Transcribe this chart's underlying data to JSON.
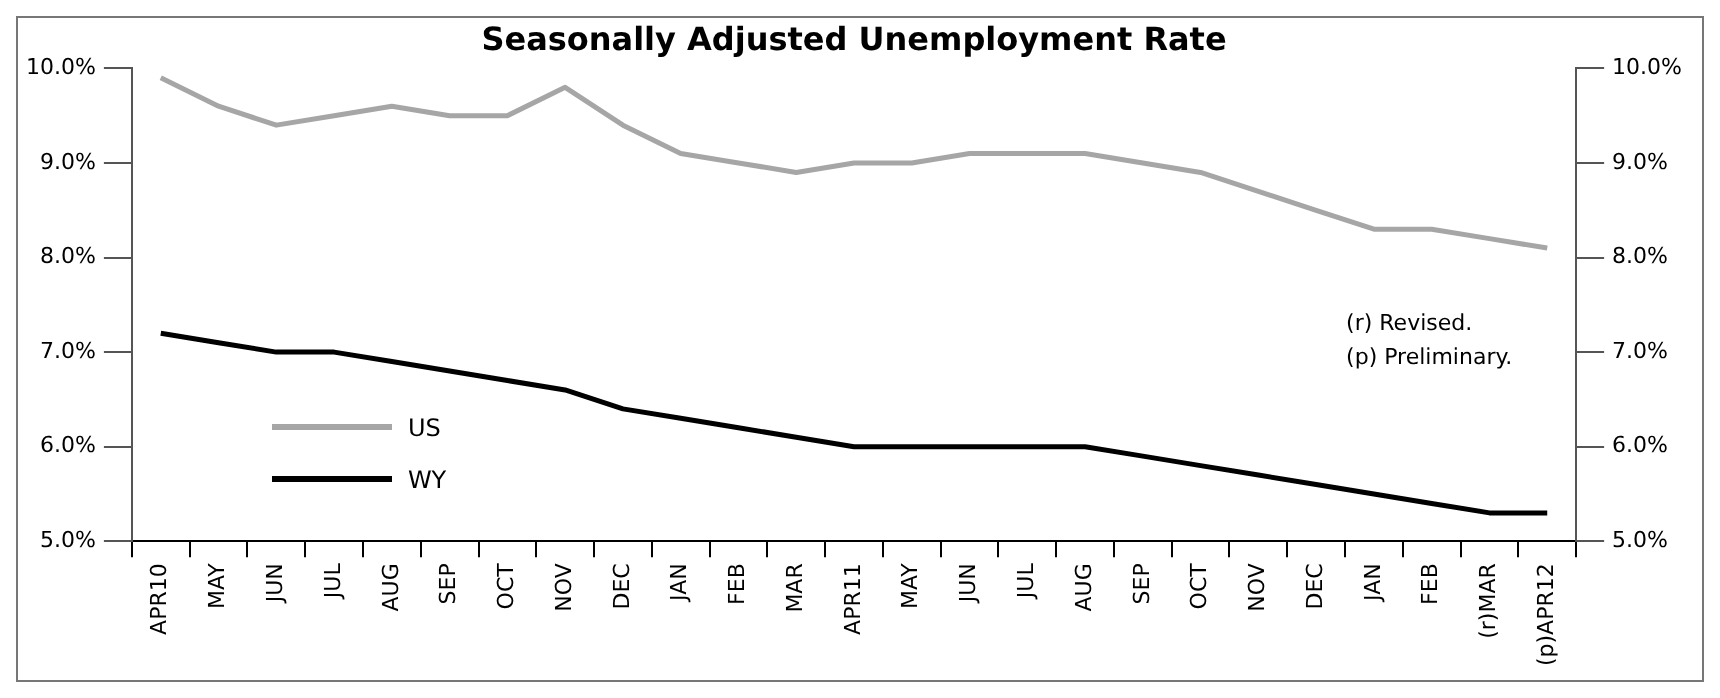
{
  "chart_data": {
    "type": "line",
    "title": "Seasonally Adjusted Unemployment Rate",
    "categories": [
      "APR10",
      "MAY",
      "JUN",
      "JUL",
      "AUG",
      "SEP",
      "OCT",
      "NOV",
      "DEC",
      "JAN",
      "FEB",
      "MAR",
      "APR11",
      "MAY",
      "JUN",
      "JUL",
      "AUG",
      "SEP",
      "OCT",
      "NOV",
      "DEC",
      "JAN",
      "FEB",
      "(r)MAR",
      "(p)APR12"
    ],
    "series": [
      {
        "name": "US",
        "color": "#a6a6a6",
        "values": [
          9.9,
          9.6,
          9.4,
          9.5,
          9.6,
          9.5,
          9.5,
          9.8,
          9.4,
          9.1,
          9.0,
          8.9,
          9.0,
          9.0,
          9.1,
          9.1,
          9.1,
          9.0,
          8.9,
          8.7,
          8.5,
          8.3,
          8.3,
          8.2,
          8.1
        ]
      },
      {
        "name": "WY",
        "color": "#000000",
        "values": [
          7.2,
          7.1,
          7.0,
          7.0,
          6.9,
          6.8,
          6.7,
          6.6,
          6.4,
          6.3,
          6.2,
          6.1,
          6.0,
          6.0,
          6.0,
          6.0,
          6.0,
          5.9,
          5.8,
          5.7,
          5.6,
          5.5,
          5.4,
          5.3,
          5.3
        ]
      }
    ],
    "ylim": [
      5,
      10
    ],
    "yticks": [
      {
        "value": 5,
        "label": "5.0%"
      },
      {
        "value": 6,
        "label": "6.0%"
      },
      {
        "value": 7,
        "label": "7.0%"
      },
      {
        "value": 8,
        "label": "8.0%"
      },
      {
        "value": 9,
        "label": "9.0%"
      },
      {
        "value": 10,
        "label": "10.0%"
      }
    ],
    "y2lim": [
      5,
      10
    ],
    "y2ticks": [
      {
        "value": 5,
        "label": "5.0%"
      },
      {
        "value": 6,
        "label": "6.0%"
      },
      {
        "value": 7,
        "label": "7.0%"
      },
      {
        "value": 8,
        "label": "8.0%"
      },
      {
        "value": 9,
        "label": "9.0%"
      },
      {
        "value": 10,
        "label": "10.0%"
      }
    ],
    "annotations": [
      "(r) Revised.",
      "(p) Preliminary."
    ],
    "legend": "bottom left",
    "grid": false,
    "marker": "none",
    "line_style": "solid"
  }
}
